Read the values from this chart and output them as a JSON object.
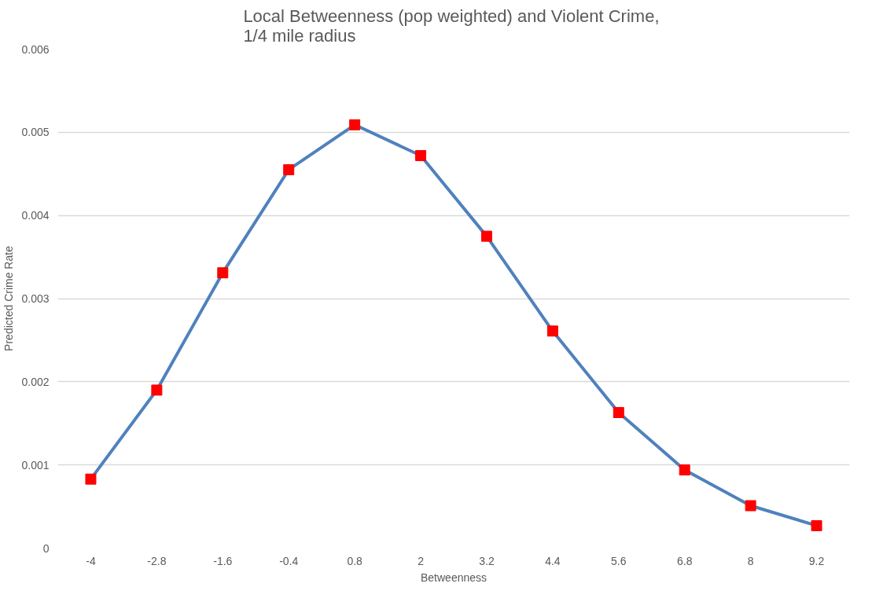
{
  "chart_data": {
    "type": "line",
    "title": "Local Betweenness  (pop weighted) and Violent Crime,\n1/4 mile radius",
    "xlabel": "Betweenness",
    "ylabel": "Predicted Crime Rate",
    "categories": [
      "-4",
      "-2.8",
      "-1.6",
      "-0.4",
      "0.8",
      "2",
      "3.2",
      "4.4",
      "5.6",
      "6.8",
      "8",
      "9.2"
    ],
    "series": [
      {
        "marker": "square",
        "color": "#4f81bd",
        "colors": [
          "#ff0000",
          "#ff0000",
          "#ff0000",
          "#ff0000",
          "#ff0000",
          "#ff0000",
          "#ff0000",
          "#ff0000",
          "#ff0000",
          "#ff0000",
          "#ff0000",
          "#ff0000"
        ],
        "values": [
          0.00083,
          0.0019,
          0.00331,
          0.00455,
          0.00509,
          0.00472,
          0.00375,
          0.00261,
          0.00163,
          0.00094,
          0.00051,
          0.00027
        ]
      }
    ],
    "ylim": [
      0,
      0.006
    ],
    "yticks": [
      0,
      0.001,
      0.002,
      0.003,
      0.004,
      0.005,
      0.006
    ],
    "grid": "y"
  }
}
